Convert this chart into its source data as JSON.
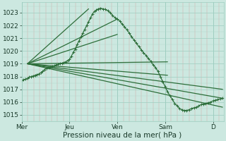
{
  "bg_color": "#cce8e0",
  "grid_color_major": "#9ecdc0",
  "grid_color_minor_v": "#d4a0a0",
  "grid_color_minor_h": "#b0d8cc",
  "line_color": "#2d6e3a",
  "title": "Pression niveau de la mer( hPa )",
  "ylim": [
    1014.5,
    1023.8
  ],
  "yticks": [
    1015,
    1016,
    1017,
    1018,
    1019,
    1020,
    1021,
    1022,
    1023
  ],
  "xlim": [
    0.0,
    4.22
  ],
  "xtick_positions": [
    0.0,
    1.0,
    2.0,
    3.0,
    4.0
  ],
  "xtick_labels": [
    "Mer",
    "Jeu",
    "Ven",
    "Sam",
    "D"
  ],
  "main_line": {
    "x": [
      0.0,
      0.04,
      0.08,
      0.12,
      0.16,
      0.2,
      0.24,
      0.28,
      0.32,
      0.36,
      0.4,
      0.44,
      0.48,
      0.52,
      0.56,
      0.6,
      0.64,
      0.68,
      0.72,
      0.76,
      0.8,
      0.84,
      0.88,
      0.92,
      0.96,
      1.0,
      1.04,
      1.08,
      1.12,
      1.16,
      1.2,
      1.24,
      1.28,
      1.32,
      1.36,
      1.4,
      1.44,
      1.48,
      1.52,
      1.56,
      1.6,
      1.65,
      1.7,
      1.75,
      1.8,
      1.85,
      1.9,
      1.95,
      2.0,
      2.05,
      2.1,
      2.15,
      2.2,
      2.25,
      2.3,
      2.35,
      2.4,
      2.45,
      2.5,
      2.55,
      2.6,
      2.65,
      2.7,
      2.75,
      2.8,
      2.85,
      2.9,
      2.95,
      3.0,
      3.05,
      3.1,
      3.15,
      3.2,
      3.25,
      3.3,
      3.35,
      3.4,
      3.45,
      3.5,
      3.55,
      3.6,
      3.65,
      3.7,
      3.75,
      3.8,
      3.85,
      3.9,
      3.95,
      4.0,
      4.05,
      4.1,
      4.15,
      4.2
    ],
    "y": [
      1017.7,
      1017.75,
      1017.8,
      1017.85,
      1017.95,
      1018.0,
      1018.05,
      1018.1,
      1018.15,
      1018.2,
      1018.3,
      1018.4,
      1018.55,
      1018.65,
      1018.7,
      1018.75,
      1018.8,
      1018.85,
      1018.9,
      1018.95,
      1019.0,
      1019.05,
      1019.1,
      1019.15,
      1019.25,
      1019.35,
      1019.6,
      1019.9,
      1020.15,
      1020.5,
      1020.8,
      1021.1,
      1021.4,
      1021.7,
      1022.0,
      1022.3,
      1022.6,
      1022.9,
      1023.1,
      1023.2,
      1023.3,
      1023.35,
      1023.3,
      1023.25,
      1023.15,
      1023.0,
      1022.8,
      1022.6,
      1022.5,
      1022.35,
      1022.1,
      1021.9,
      1021.65,
      1021.4,
      1021.1,
      1020.85,
      1020.6,
      1020.35,
      1020.1,
      1019.85,
      1019.65,
      1019.4,
      1019.2,
      1018.9,
      1018.7,
      1018.4,
      1018.0,
      1017.6,
      1017.2,
      1016.8,
      1016.5,
      1016.2,
      1015.9,
      1015.7,
      1015.5,
      1015.4,
      1015.35,
      1015.35,
      1015.4,
      1015.5,
      1015.55,
      1015.6,
      1015.7,
      1015.8,
      1015.85,
      1015.9,
      1015.95,
      1016.0,
      1016.1,
      1016.15,
      1016.2,
      1016.25,
      1016.3
    ]
  },
  "fan_origin_x": 0.12,
  "fan_origin_y": 1019.0,
  "forecast_lines": [
    {
      "x1": 4.2,
      "y1": 1017.0
    },
    {
      "x1": 4.2,
      "y1": 1016.3
    },
    {
      "x1": 4.2,
      "y1": 1015.6
    },
    {
      "x1": 3.05,
      "y1": 1019.15
    },
    {
      "x1": 3.05,
      "y1": 1018.1
    },
    {
      "x1": 2.0,
      "y1": 1022.5
    },
    {
      "x1": 2.0,
      "y1": 1021.3
    },
    {
      "x1": 1.4,
      "y1": 1023.3
    }
  ],
  "linewidth": 0.9,
  "marker_style": "+",
  "marker_size": 2.5,
  "marker_lw": 0.7,
  "title_fontsize": 7.5,
  "tick_fontsize": 6.5
}
